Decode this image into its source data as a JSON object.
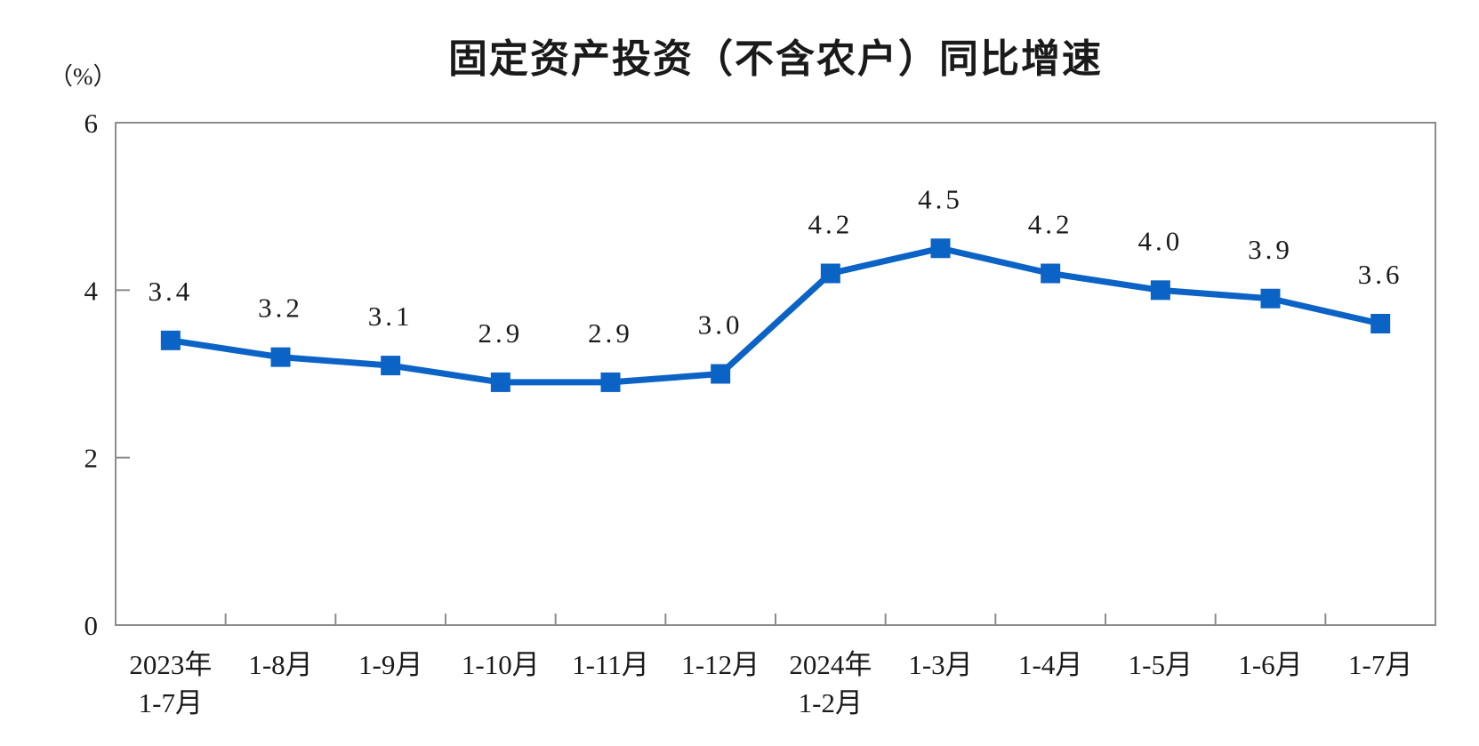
{
  "chart_data": {
    "type": "line",
    "title": "固定资产投资（不含农户）同比增速",
    "ylabel": "（%）",
    "categories": [
      [
        "2023年",
        "1-7月"
      ],
      [
        "1-8月"
      ],
      [
        "1-9月"
      ],
      [
        "1-10月"
      ],
      [
        "1-11月"
      ],
      [
        "1-12月"
      ],
      [
        "2024年",
        "1-2月"
      ],
      [
        "1-3月"
      ],
      [
        "1-4月"
      ],
      [
        "1-5月"
      ],
      [
        "1-6月"
      ],
      [
        "1-7月"
      ]
    ],
    "values": [
      3.4,
      3.2,
      3.1,
      2.9,
      2.9,
      3.0,
      4.2,
      4.5,
      4.2,
      4.0,
      3.9,
      3.6
    ],
    "data_labels": [
      "3.4",
      "3.2",
      "3.1",
      "2.9",
      "2.9",
      "3.0",
      "4.2",
      "4.5",
      "4.2",
      "4.0",
      "3.9",
      "3.6"
    ],
    "ylim": [
      0,
      6
    ],
    "yticks": [
      0,
      2,
      4,
      6
    ],
    "grid": false,
    "legend_position": "none",
    "marker": "square",
    "colors": {
      "line": "#0C63C6",
      "marker": "#0C63C6",
      "axis": "#8C8C8C",
      "text": "#1A1A1A",
      "background": "#FFFFFF"
    }
  }
}
